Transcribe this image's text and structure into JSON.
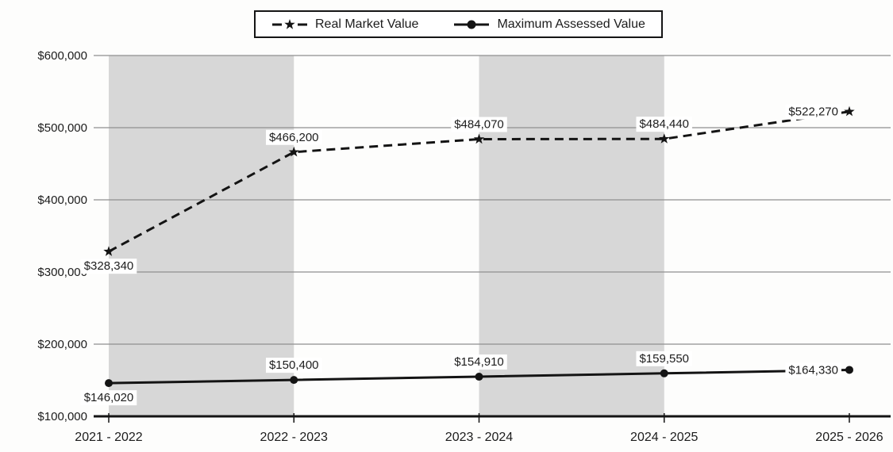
{
  "chart_data": {
    "type": "line",
    "categories": [
      "2021 - 2022",
      "2022 - 2023",
      "2023 - 2024",
      "2024 - 2025",
      "2025 - 2026"
    ],
    "series": [
      {
        "name": "Real Market Value",
        "values": [
          328340,
          466200,
          484070,
          484440,
          522270
        ],
        "labels": [
          "$328,340",
          "$466,200",
          "$484,070",
          "$484,440",
          "$522,270"
        ],
        "marker": "star",
        "line_style": "dashed"
      },
      {
        "name": "Maximum Assessed Value",
        "values": [
          146020,
          150400,
          154910,
          159550,
          164330
        ],
        "labels": [
          "$146,020",
          "$150,400",
          "$154,910",
          "$159,550",
          "$164,330"
        ],
        "marker": "circle",
        "line_style": "solid"
      }
    ],
    "y_axis": {
      "min": 100000,
      "max": 600000,
      "tick_interval": 100000,
      "ticks": [
        {
          "label": "$600,000",
          "value": 600000
        },
        {
          "label": "$500,000",
          "value": 500000
        },
        {
          "label": "$400,000",
          "value": 400000
        },
        {
          "label": "$300,000",
          "value": 300000
        },
        {
          "label": "$200,000",
          "value": 200000
        },
        {
          "label": "$100,000",
          "value": 100000
        }
      ]
    },
    "grid": true,
    "legend_position": "top-center",
    "shaded_band_ranges": [
      [
        0,
        1
      ],
      [
        2,
        3
      ]
    ],
    "colors": {
      "line": "#141414",
      "grid": "#8f8f8f",
      "band": "#d7d7d7",
      "background": "#fdfdfc",
      "label_background": "#ffffff",
      "text": "#1c1c1c"
    }
  }
}
